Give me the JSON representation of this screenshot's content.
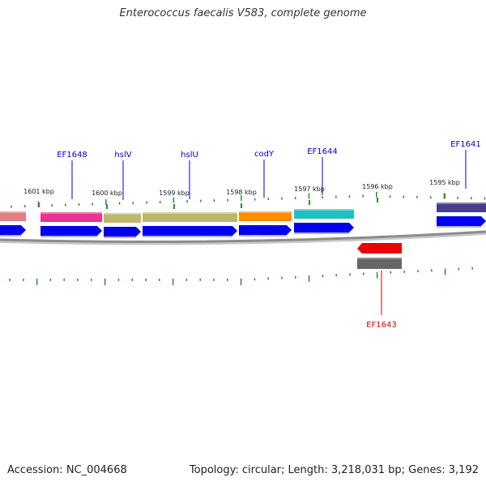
{
  "title": "Enterococcus faecalis V583, complete genome",
  "footer": {
    "accession": "Accession: NC_004668",
    "topology": "Topology: circular; Length: 3,218,031 bp; Genes: 3,192"
  },
  "colors": {
    "backbone": "#8c8c8c",
    "tick": "#2e8b2e",
    "cds": "#0000ee",
    "forward_label": "#0000cc",
    "reverse_label": "#dd0000",
    "reverse_cds": "#ee0000",
    "reverse_feature": "#666666"
  },
  "kbp_ticks": [
    {
      "label": "1601 kbp"
    },
    {
      "label": "1600 kbp"
    },
    {
      "label": "1599 kbp"
    },
    {
      "label": "1598 kbp"
    },
    {
      "label": "1597 kbp"
    },
    {
      "label": "1596 kbp"
    },
    {
      "label": "1595 kbp"
    }
  ],
  "forward_genes": [
    {
      "label": "",
      "color": "#e08080"
    },
    {
      "label": "EF1648",
      "color": "#e8338f"
    },
    {
      "label": "hslV",
      "color": "#bdb76b"
    },
    {
      "label": "hslU",
      "color": "#bdb76b"
    },
    {
      "label": "codY",
      "color": "#ff8c00"
    },
    {
      "label": "EF1644",
      "color": "#20c0c0"
    },
    {
      "label": "EF1641",
      "color": "#483d8b"
    }
  ],
  "reverse_genes": [
    {
      "label": "EF1643",
      "color": "#666666"
    }
  ]
}
